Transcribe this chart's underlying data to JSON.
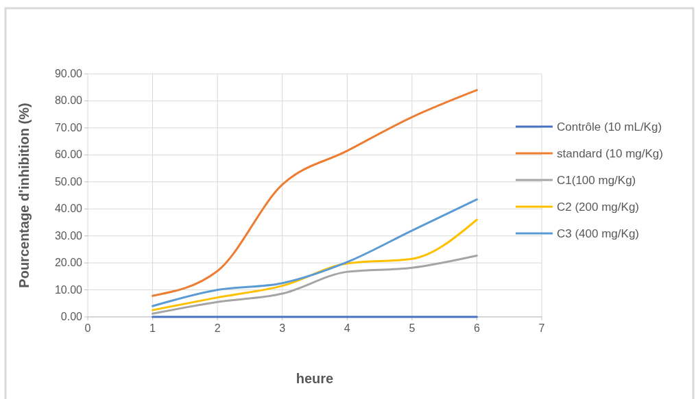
{
  "chart_data": {
    "type": "line",
    "xlabel": "heure",
    "ylabel": "Pourcentage d'inhibition  (%)",
    "x": [
      1,
      2,
      3,
      4,
      5,
      6
    ],
    "series": [
      {
        "name": "Contrôle (10 mL/Kg)",
        "color": "#4472c4",
        "values": [
          0,
          0,
          0,
          0,
          0,
          0
        ]
      },
      {
        "name": "standard (10 mg/Kg)",
        "color": "#ed7d31",
        "values": [
          7.8,
          17,
          49,
          61.5,
          74,
          84
        ]
      },
      {
        "name": "C1(100 mg/Kg)",
        "color": "#a5a5a5",
        "values": [
          1.2,
          5.5,
          8.6,
          16.7,
          18.2,
          22.7
        ]
      },
      {
        "name": "C2 (200 mg/Kg)",
        "color": "#ffc000",
        "values": [
          2.5,
          7.2,
          11.5,
          19.8,
          21.5,
          36
        ]
      },
      {
        "name": "C3 (400 mg/Kg)",
        "color": "#5b9bd5",
        "values": [
          4,
          10,
          12.5,
          20.3,
          32,
          43.5
        ]
      }
    ],
    "xlim": [
      0,
      7
    ],
    "xticks": [
      0,
      1,
      2,
      3,
      4,
      5,
      6,
      7
    ],
    "ylim": [
      0,
      90
    ],
    "yticks": [
      {
        "value": 0,
        "label": "0.00"
      },
      {
        "value": 10,
        "label": "10.00"
      },
      {
        "value": 20,
        "label": "20.00"
      },
      {
        "value": 30,
        "label": "30.00"
      },
      {
        "value": 40,
        "label": "40.00"
      },
      {
        "value": 50,
        "label": "50.00"
      },
      {
        "value": 60,
        "label": "60.00"
      },
      {
        "value": 70,
        "label": "70.00"
      },
      {
        "value": 80,
        "label": "80.00"
      },
      {
        "value": 90,
        "label": "90.00"
      }
    ],
    "grid": true,
    "legend": "right",
    "marker": "none",
    "line_style": "solid"
  }
}
